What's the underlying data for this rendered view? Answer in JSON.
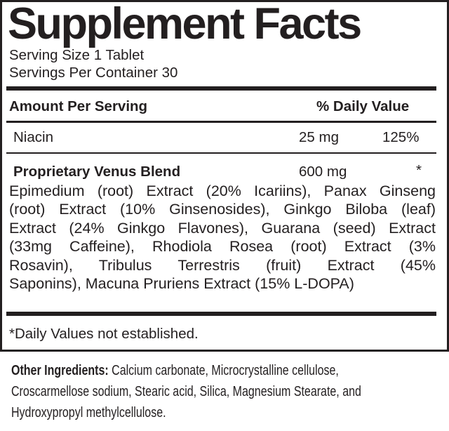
{
  "title": "Supplement Facts",
  "serving_size": "Serving Size 1 Tablet",
  "servings_per_container": "Servings Per Container 30",
  "header": {
    "amount": "Amount Per Serving",
    "daily_value": "% Daily Value"
  },
  "rows": [
    {
      "name": "Niacin",
      "amount": "25 mg",
      "dv": "125%"
    },
    {
      "name": "Proprietary Venus Blend",
      "amount": "600 mg",
      "dv": "*"
    }
  ],
  "blend_description_lines": [
    "Epimedium (root) Extract (20% Icariins), Panax Ginseng",
    "(root) Extract (10% Ginsenosides), Ginkgo Biloba (leaf)",
    "Extract (24% Ginkgo Flavones), Guarana (seed) Extract",
    "(33mg Caffeine), Rhodiola Rosea (root) Extract (3%",
    "Rosavin), Tribulus Terrestris (fruit) Extract (45%",
    "Saponins), Macuna Pruriens Extract (15% L-DOPA)"
  ],
  "footnote": "*Daily Values not established.",
  "other_ingredients": {
    "label": "Other Ingredients:",
    "lines": [
      " Calcium carbonate, Microcrystalline cellulose,",
      "Croscarmellose sodium, Stearic acid, Silica, Magnesium Stearate, and",
      "Hydroxypropyl methylcellulose."
    ]
  }
}
